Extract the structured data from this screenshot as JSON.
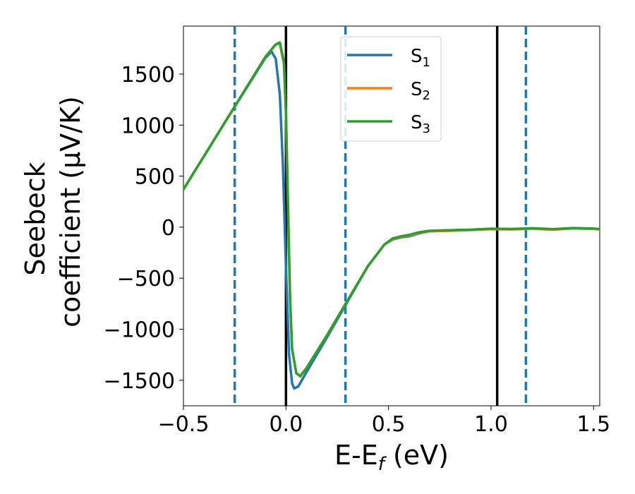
{
  "chart_data": {
    "type": "line",
    "xlabel_main": "E-E",
    "xlabel_sub": "f",
    "xlabel_tail": " (eV)",
    "ylabel_line1": "Seebeck",
    "ylabel_line2": "coefficient  (μV/K)",
    "xlim": [
      -0.5,
      1.53
    ],
    "ylim": [
      -1750,
      1970
    ],
    "xticks": [
      -0.5,
      0.0,
      0.5,
      1.0,
      1.5
    ],
    "xtick_labels": [
      "−0.5",
      "0.0",
      "0.5",
      "1.0",
      "1.5"
    ],
    "yticks": [
      -1500,
      -1000,
      -500,
      0,
      500,
      1000,
      1500
    ],
    "ytick_labels": [
      "−1500",
      "−1000",
      "−500",
      "0",
      "500",
      "1000",
      "1500"
    ],
    "series": [
      {
        "name": "S",
        "name_sub": "1",
        "color": "#1f77b4",
        "x": [
          -0.5,
          -0.3,
          -0.1,
          -0.07,
          -0.05,
          -0.03,
          -0.015,
          0.0,
          0.015,
          0.03,
          0.04,
          0.06,
          0.1,
          0.2,
          0.3,
          0.4,
          0.48,
          0.52,
          0.56,
          0.6,
          0.65,
          0.7,
          0.8,
          0.9,
          1.0,
          1.1,
          1.2,
          1.3,
          1.4,
          1.5,
          1.53
        ],
        "y": [
          370,
          1020,
          1660,
          1720,
          1650,
          1300,
          600,
          -400,
          -1250,
          -1530,
          -1580,
          -1560,
          -1420,
          -1080,
          -730,
          -380,
          -170,
          -120,
          -100,
          -90,
          -60,
          -40,
          -30,
          -25,
          -15,
          -18,
          -12,
          -20,
          -10,
          -15,
          -20
        ]
      },
      {
        "name": "S",
        "name_sub": "2",
        "color": "#ff7f0e",
        "x": [
          -0.5,
          -0.3,
          -0.1,
          -0.05,
          -0.03,
          -0.01,
          0.0,
          0.01,
          0.02,
          0.03,
          0.05,
          0.07,
          0.1,
          0.2,
          0.3,
          0.4,
          0.48,
          0.52,
          0.56,
          0.6,
          0.65,
          0.7,
          0.8,
          0.9,
          1.0,
          1.1,
          1.2,
          1.3,
          1.4,
          1.5,
          1.53
        ],
        "y": [
          370,
          1020,
          1670,
          1790,
          1800,
          1600,
          1100,
          200,
          -700,
          -1200,
          -1430,
          -1460,
          -1380,
          -1060,
          -720,
          -380,
          -170,
          -115,
          -95,
          -80,
          -55,
          -40,
          -35,
          -28,
          -20,
          -22,
          -15,
          -25,
          -12,
          -18,
          -22
        ]
      },
      {
        "name": "S",
        "name_sub": "3",
        "color": "#2ca02c",
        "x": [
          -0.5,
          -0.3,
          -0.1,
          -0.05,
          -0.03,
          -0.01,
          0.0,
          0.01,
          0.02,
          0.03,
          0.05,
          0.07,
          0.1,
          0.2,
          0.3,
          0.4,
          0.48,
          0.52,
          0.56,
          0.6,
          0.65,
          0.7,
          0.8,
          0.9,
          1.0,
          1.1,
          1.2,
          1.3,
          1.4,
          1.5,
          1.53
        ],
        "y": [
          370,
          1020,
          1670,
          1790,
          1810,
          1620,
          1120,
          220,
          -690,
          -1190,
          -1430,
          -1460,
          -1380,
          -1060,
          -720,
          -380,
          -170,
          -110,
          -90,
          -75,
          -50,
          -35,
          -30,
          -25,
          -15,
          -18,
          -10,
          -20,
          -8,
          -14,
          -18
        ]
      }
    ],
    "vlines_solid": [
      0.0,
      1.03
    ],
    "vlines_dashed": [
      -0.25,
      0.29,
      1.17
    ],
    "vline_solid_color": "#000000",
    "vline_dashed_color": "#1f77b4",
    "legend_position": "upper-center"
  }
}
